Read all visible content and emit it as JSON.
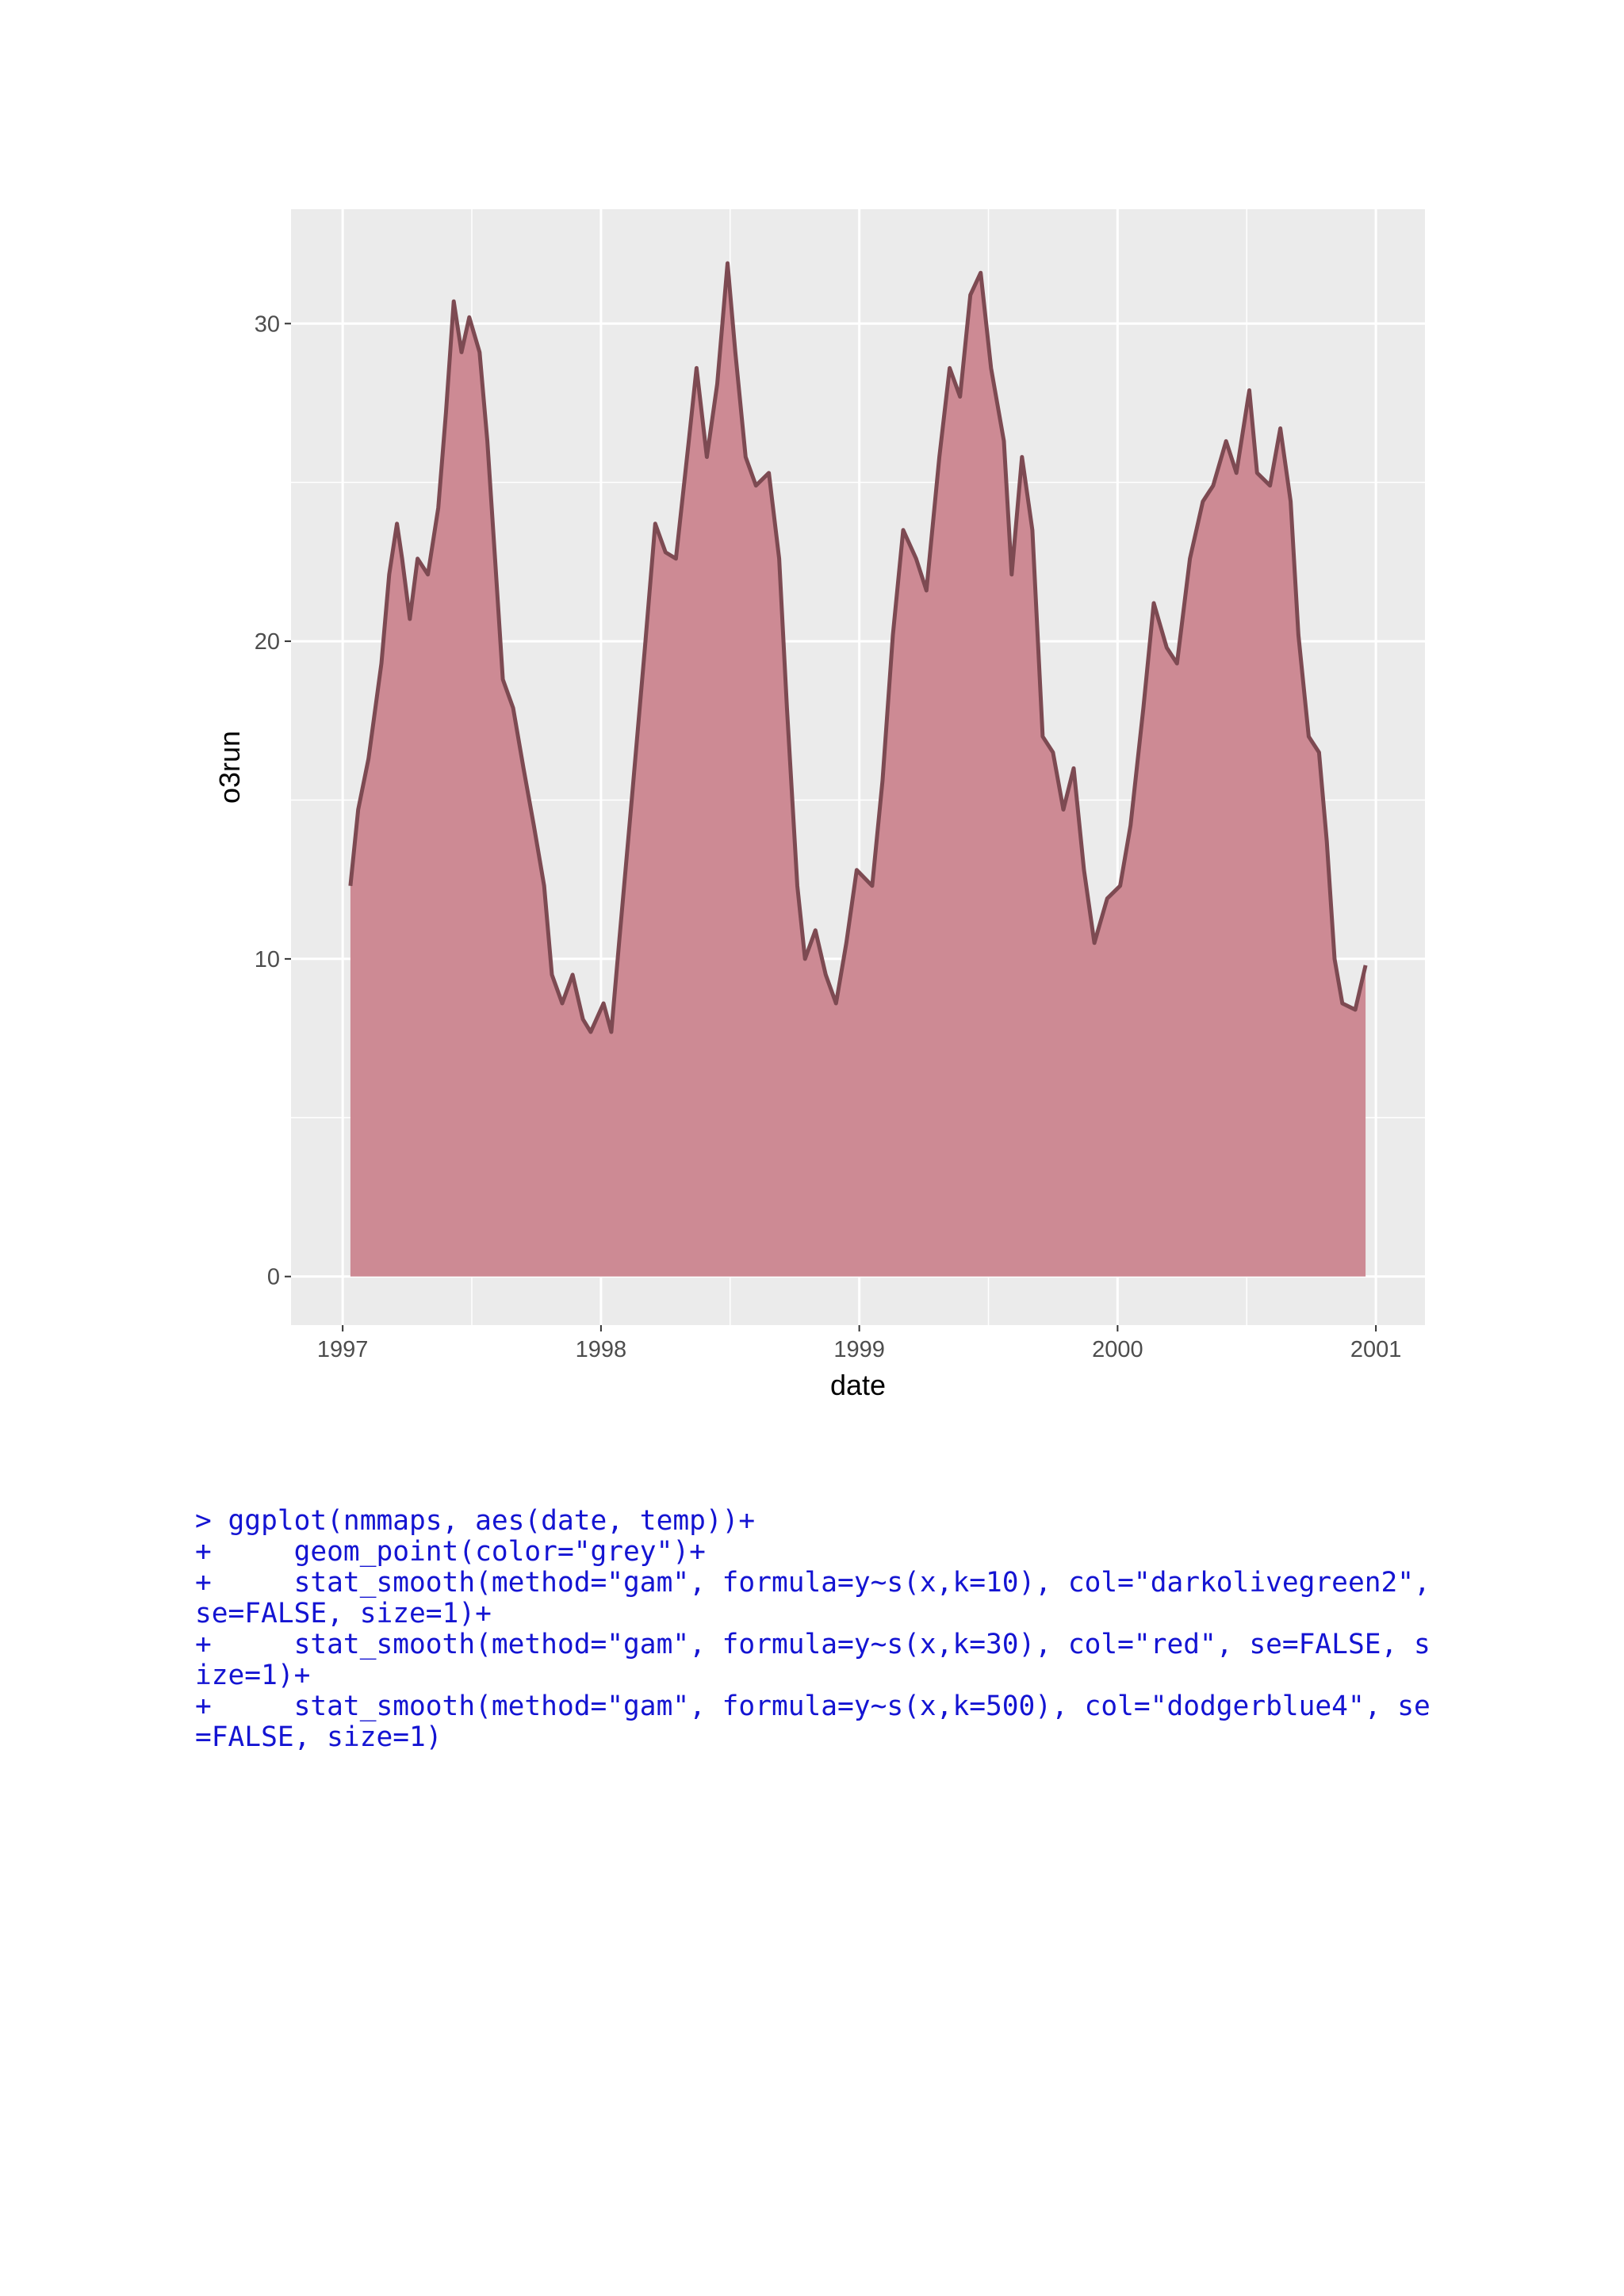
{
  "chart_data": {
    "type": "area",
    "x_label": "date",
    "y_label": "o3run",
    "x": [
      1997.03,
      1997.06,
      1997.1,
      1997.15,
      1997.18,
      1997.21,
      1997.23,
      1997.26,
      1997.29,
      1997.33,
      1997.37,
      1997.4,
      1997.43,
      1997.46,
      1997.49,
      1997.53,
      1997.56,
      1997.59,
      1997.62,
      1997.66,
      1997.7,
      1997.74,
      1997.78,
      1997.81,
      1997.85,
      1997.89,
      1997.93,
      1997.96,
      1998.01,
      1998.04,
      1998.07,
      1998.12,
      1998.17,
      1998.21,
      1998.25,
      1998.29,
      1998.34,
      1998.37,
      1998.41,
      1998.45,
      1998.49,
      1998.52,
      1998.56,
      1998.6,
      1998.65,
      1998.69,
      1998.72,
      1998.76,
      1998.79,
      1998.83,
      1998.87,
      1998.91,
      1998.95,
      1998.99,
      1999.05,
      1999.09,
      1999.13,
      1999.17,
      1999.22,
      1999.26,
      1999.31,
      1999.35,
      1999.39,
      1999.43,
      1999.47,
      1999.51,
      1999.56,
      1999.59,
      1999.63,
      1999.67,
      1999.71,
      1999.75,
      1999.79,
      1999.83,
      1999.87,
      1999.91,
      1999.96,
      2000.01,
      2000.05,
      2000.1,
      2000.14,
      2000.19,
      2000.23,
      2000.28,
      2000.33,
      2000.37,
      2000.42,
      2000.46,
      2000.51,
      2000.54,
      2000.59,
      2000.63,
      2000.67,
      2000.7,
      2000.74,
      2000.78,
      2000.81,
      2000.84,
      2000.87,
      2000.92,
      2000.96
    ],
    "values": [
      12.3,
      14.7,
      16.3,
      19.3,
      22.1,
      23.7,
      22.6,
      20.7,
      22.6,
      22.1,
      24.2,
      27.2,
      30.7,
      29.1,
      30.2,
      29.1,
      26.3,
      22.6,
      18.8,
      17.9,
      16.0,
      14.2,
      12.3,
      9.5,
      8.6,
      9.5,
      8.1,
      7.7,
      8.6,
      7.7,
      10.5,
      15.1,
      19.8,
      23.7,
      22.8,
      22.6,
      26.3,
      28.6,
      25.8,
      28.1,
      31.9,
      29.1,
      25.8,
      24.9,
      25.3,
      22.6,
      17.9,
      12.3,
      10.0,
      10.9,
      9.5,
      8.6,
      10.5,
      12.8,
      12.3,
      15.6,
      20.2,
      23.5,
      22.6,
      21.6,
      25.8,
      28.6,
      27.7,
      30.9,
      31.6,
      28.6,
      26.3,
      22.1,
      25.8,
      23.5,
      17.0,
      16.5,
      14.7,
      16.0,
      12.8,
      10.5,
      11.9,
      12.3,
      14.2,
      17.9,
      21.2,
      19.8,
      19.3,
      22.6,
      24.4,
      24.9,
      26.3,
      25.3,
      27.9,
      25.3,
      24.9,
      26.7,
      24.4,
      20.2,
      17.0,
      16.5,
      13.7,
      10.0,
      8.6,
      8.4,
      9.8
    ],
    "fill_color": "#cd8a94",
    "line_color": "#7d4a52",
    "panel_color": "#ebebeb",
    "xlim": [
      1996.8,
      2001.19
    ],
    "xticks": [
      1997,
      1998,
      1999,
      2000,
      2001
    ],
    "ylim": [
      -1.53,
      33.6
    ],
    "yticks": [
      0,
      10,
      20,
      30
    ],
    "grid": true,
    "minor_grid": true
  },
  "code": [
    "> ggplot(nmmaps, aes(date, temp))+",
    "+     geom_point(color=\"grey\")+",
    "+     stat_smooth(method=\"gam\", formula=y~s(x,k=10), col=\"darkolivegreen2\",",
    "se=FALSE, size=1)+",
    "+     stat_smooth(method=\"gam\", formula=y~s(x,k=30), col=\"red\", se=FALSE, s",
    "ize=1)+",
    "+     stat_smooth(method=\"gam\", formula=y~s(x,k=500), col=\"dodgerblue4\", se",
    "=FALSE, size=1)"
  ]
}
